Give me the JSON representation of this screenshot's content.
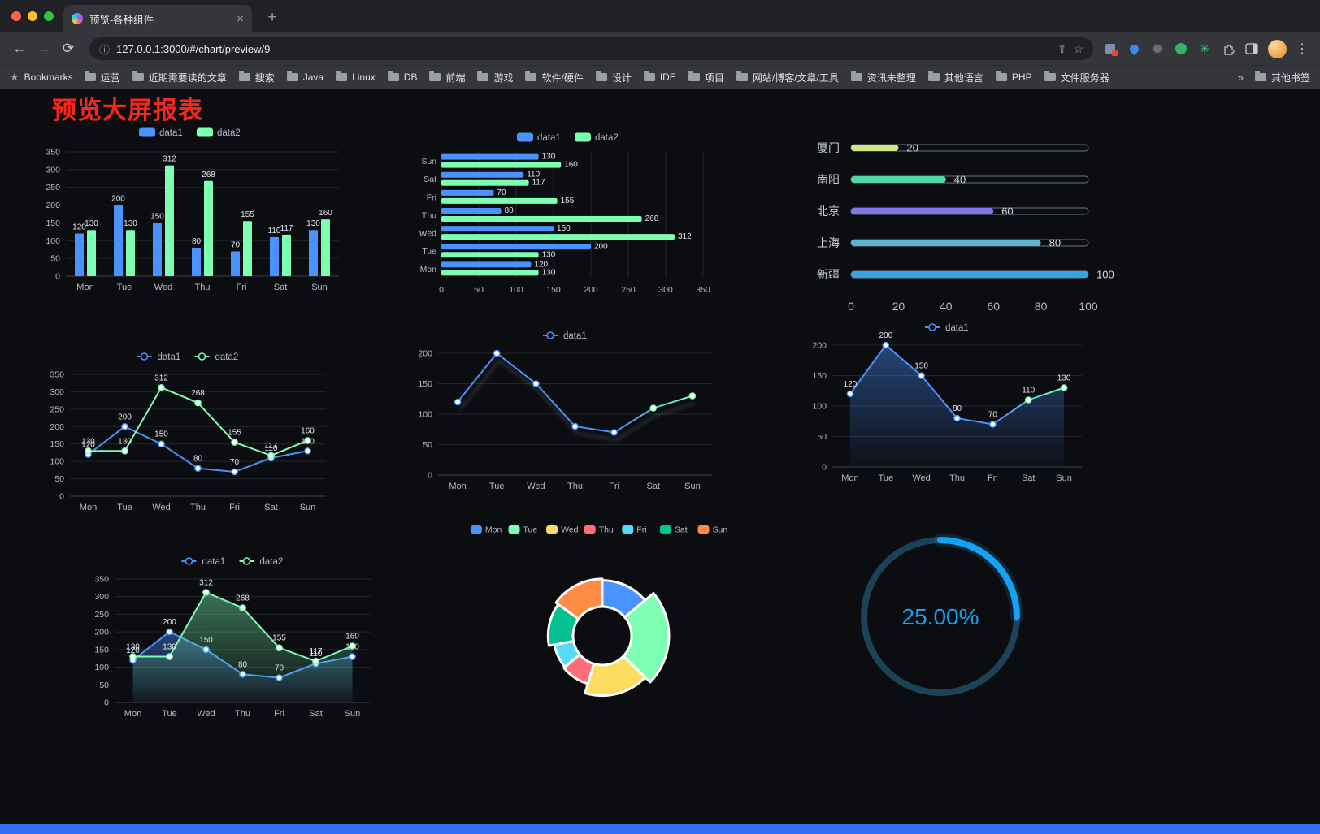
{
  "browser": {
    "tab": {
      "title": "预览-各种组件",
      "close": "×",
      "new_tab": "+"
    },
    "nav": {
      "back": "←",
      "forward": "→",
      "reload": "⟳",
      "info": "ⓘ",
      "url": "127.0.0.1:3000/#/chart/preview/9",
      "share": "⇧",
      "star": "☆",
      "menu": "⋮"
    },
    "bookmarks": {
      "label": "Bookmarks",
      "items": [
        "运营",
        "近期需要读的文章",
        "搜索",
        "Java",
        "Linux",
        "DB",
        "前端",
        "游戏",
        "软件/硬件",
        "设计",
        "IDE",
        "项目",
        "网站/博客/文章/工具",
        "资讯未整理",
        "其他语言",
        "PHP",
        "文件服务器"
      ],
      "overflow": "»",
      "other": "其他书签"
    }
  },
  "page": {
    "title": "预览大屏报表"
  },
  "colors": {
    "title_red": "#f5281e",
    "data1_blue": "#4992ff",
    "data2_green": "#7cffb2",
    "axis_text": "#b9b8ce",
    "bottom_bar_blue": "#2f6ef5",
    "traffic_lights": [
      "#ff5f57",
      "#febc2e",
      "#28c840"
    ]
  },
  "chart_data": [
    {
      "type": "bar",
      "categories": [
        "Mon",
        "Tue",
        "Wed",
        "Thu",
        "Fri",
        "Sat",
        "Sun"
      ],
      "series": [
        {
          "name": "data1",
          "color": "#4992ff",
          "values": [
            120,
            200,
            150,
            80,
            70,
            110,
            130
          ]
        },
        {
          "name": "data2",
          "color": "#7cffb2",
          "values": [
            130,
            130,
            312,
            268,
            155,
            117,
            160
          ]
        }
      ],
      "ylim": [
        0,
        350
      ],
      "yticks": [
        0,
        50,
        100,
        150,
        200,
        250,
        300,
        350
      ],
      "legend": [
        "data1",
        "data2"
      ],
      "legend_position": "top",
      "grid": true
    },
    {
      "type": "hbar",
      "categories": [
        "Mon",
        "Tue",
        "Wed",
        "Thu",
        "Fri",
        "Sat",
        "Sun"
      ],
      "series": [
        {
          "name": "data1",
          "color": "#4992ff",
          "values": [
            120,
            200,
            150,
            80,
            70,
            110,
            130
          ]
        },
        {
          "name": "data2",
          "color": "#7cffb2",
          "values": [
            130,
            130,
            312,
            268,
            155,
            117,
            160
          ]
        }
      ],
      "xlim": [
        0,
        350
      ],
      "xticks": [
        0,
        50,
        100,
        150,
        200,
        250,
        300,
        350
      ],
      "legend": [
        "data1",
        "data2"
      ],
      "legend_position": "top",
      "grid": true
    },
    {
      "type": "progress",
      "max": 100,
      "xticks": [
        0,
        20,
        40,
        60,
        80,
        100
      ],
      "rows": [
        {
          "label": "厦门",
          "value": 20,
          "color": "#cfe87f"
        },
        {
          "label": "南阳",
          "value": 40,
          "color": "#51d6a6"
        },
        {
          "label": "北京",
          "value": 60,
          "color": "#8278e9"
        },
        {
          "label": "上海",
          "value": 80,
          "color": "#57b6d2"
        },
        {
          "label": "新疆",
          "value": 100,
          "color": "#36a4de"
        }
      ]
    },
    {
      "type": "line",
      "categories": [
        "Mon",
        "Tue",
        "Wed",
        "Thu",
        "Fri",
        "Sat",
        "Sun"
      ],
      "series": [
        {
          "name": "data1",
          "color": "#4992ff",
          "values": [
            120,
            200,
            150,
            80,
            70,
            110,
            130
          ]
        },
        {
          "name": "data2",
          "color": "#7cffb2",
          "values": [
            130,
            130,
            312,
            268,
            155,
            117,
            160
          ]
        }
      ],
      "ylim": [
        0,
        350
      ],
      "yticks": [
        0,
        50,
        100,
        150,
        200,
        250,
        300,
        350
      ],
      "legend": [
        "data1",
        "data2"
      ],
      "labels": true
    },
    {
      "type": "line",
      "categories": [
        "Mon",
        "Tue",
        "Wed",
        "Thu",
        "Fri",
        "Sat",
        "Sun"
      ],
      "series": [
        {
          "name": "data1",
          "color": "#4992ff",
          "values": [
            120,
            200,
            150,
            80,
            70,
            110,
            130
          ]
        }
      ],
      "ylim": [
        0,
        200
      ],
      "yticks": [
        0,
        50,
        100,
        150,
        200
      ],
      "legend": [
        "data1"
      ],
      "labels": false,
      "line_gradient": [
        "#4992ff",
        "#7cffb2"
      ],
      "shadow": true
    },
    {
      "type": "line",
      "categories": [
        "Mon",
        "Tue",
        "Wed",
        "Thu",
        "Fri",
        "Sat",
        "Sun"
      ],
      "series": [
        {
          "name": "data1",
          "color": "#4992ff",
          "values": [
            120,
            200,
            150,
            80,
            70,
            110,
            130
          ],
          "area": true
        }
      ],
      "ylim": [
        0,
        200
      ],
      "yticks": [
        0,
        50,
        100,
        150,
        200
      ],
      "legend": [
        "data1"
      ],
      "labels": true,
      "line_gradient": [
        "#4992ff",
        "#7cffb2"
      ]
    },
    {
      "type": "line",
      "categories": [
        "Mon",
        "Tue",
        "Wed",
        "Thu",
        "Fri",
        "Sat",
        "Sun"
      ],
      "series": [
        {
          "name": "data1",
          "color": "#4992ff",
          "values": [
            120,
            200,
            150,
            80,
            70,
            110,
            130
          ],
          "area": true
        },
        {
          "name": "data2",
          "color": "#7cffb2",
          "values": [
            130,
            130,
            312,
            268,
            155,
            117,
            160
          ],
          "area": true
        }
      ],
      "ylim": [
        0,
        350
      ],
      "yticks": [
        0,
        50,
        100,
        150,
        200,
        250,
        300,
        350
      ],
      "legend": [
        "data1",
        "data2"
      ],
      "labels": true
    },
    {
      "type": "pie",
      "rose": true,
      "items": [
        {
          "label": "Mon",
          "value": 120,
          "color": "#4992ff"
        },
        {
          "label": "Tue",
          "value": 200,
          "color": "#7cffb2"
        },
        {
          "label": "Wed",
          "value": 150,
          "color": "#fddd60"
        },
        {
          "label": "Thu",
          "value": 80,
          "color": "#ff6e76"
        },
        {
          "label": "Fri",
          "value": 70,
          "color": "#58d9f9"
        },
        {
          "label": "Sat",
          "value": 110,
          "color": "#05c091"
        },
        {
          "label": "Sun",
          "value": 130,
          "color": "#ff8a45"
        }
      ],
      "legend_position": "top"
    },
    {
      "type": "gauge",
      "percent": 25,
      "text": "25.00%",
      "color": "#14a2f2",
      "track": "#1c4257"
    }
  ]
}
